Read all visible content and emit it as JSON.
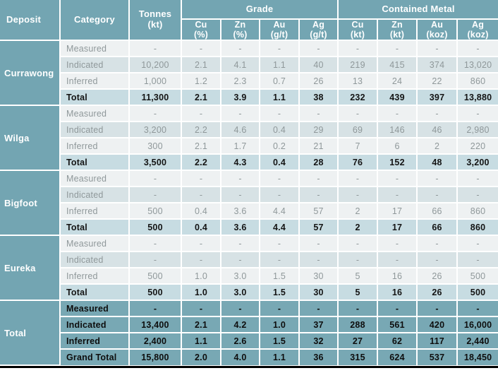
{
  "chart_data": {
    "type": "table",
    "header": {
      "deposit": "Deposit",
      "category": "Category",
      "tonnes": "Tonnes\n(kt)",
      "grade_group": "Grade",
      "metal_group": "Contained Metal",
      "sub_cols": [
        "Cu\n(%)",
        "Zn\n(%)",
        "Au\n(g/t)",
        "Ag\n(g/t)",
        "Cu\n(kt)",
        "Zn\n(kt)",
        "Au\n(koz)",
        "Ag\n(koz)"
      ]
    },
    "sections": [
      {
        "deposit": "Currawong",
        "variant": "normal",
        "rows": [
          {
            "category": "Measured",
            "values": [
              "-",
              "-",
              "-",
              "-",
              "-",
              "-",
              "-",
              "-",
              "-"
            ]
          },
          {
            "category": "Indicated",
            "values": [
              "10,200",
              "2.1",
              "4.1",
              "1.1",
              "40",
              "219",
              "415",
              "374",
              "13,020"
            ]
          },
          {
            "category": "Inferred",
            "values": [
              "1,000",
              "1.2",
              "2.3",
              "0.7",
              "26",
              "13",
              "24",
              "22",
              "860"
            ]
          },
          {
            "category": "Total",
            "values": [
              "11,300",
              "2.1",
              "3.9",
              "1.1",
              "38",
              "232",
              "439",
              "397",
              "13,880"
            ]
          }
        ]
      },
      {
        "deposit": "Wilga",
        "variant": "normal",
        "rows": [
          {
            "category": "Measured",
            "values": [
              "-",
              "-",
              "-",
              "-",
              "-",
              "-",
              "-",
              "-",
              "-"
            ]
          },
          {
            "category": "Indicated",
            "values": [
              "3,200",
              "2.2",
              "4.6",
              "0.4",
              "29",
              "69",
              "146",
              "46",
              "2,980"
            ]
          },
          {
            "category": "Inferred",
            "values": [
              "300",
              "2.1",
              "1.7",
              "0.2",
              "21",
              "7",
              "6",
              "2",
              "220"
            ]
          },
          {
            "category": "Total",
            "values": [
              "3,500",
              "2.2",
              "4.3",
              "0.4",
              "28",
              "76",
              "152",
              "48",
              "3,200"
            ]
          }
        ]
      },
      {
        "deposit": "Bigfoot",
        "variant": "normal",
        "rows": [
          {
            "category": "Measured",
            "values": [
              "-",
              "-",
              "-",
              "-",
              "-",
              "-",
              "-",
              "-",
              "-"
            ]
          },
          {
            "category": "Indicated",
            "values": [
              "-",
              "-",
              "-",
              "-",
              "-",
              "-",
              "-",
              "-",
              "-"
            ]
          },
          {
            "category": "Inferred",
            "values": [
              "500",
              "0.4",
              "3.6",
              "4.4",
              "57",
              "2",
              "17",
              "66",
              "860"
            ]
          },
          {
            "category": "Total",
            "values": [
              "500",
              "0.4",
              "3.6",
              "4.4",
              "57",
              "2",
              "17",
              "66",
              "860"
            ]
          }
        ]
      },
      {
        "deposit": "Eureka",
        "variant": "normal",
        "rows": [
          {
            "category": "Measured",
            "values": [
              "-",
              "-",
              "-",
              "-",
              "-",
              "-",
              "-",
              "-",
              "-"
            ]
          },
          {
            "category": "Indicated",
            "values": [
              "-",
              "-",
              "-",
              "-",
              "-",
              "-",
              "-",
              "-",
              "-"
            ]
          },
          {
            "category": "Inferred",
            "values": [
              "500",
              "1.0",
              "3.0",
              "1.5",
              "30",
              "5",
              "16",
              "26",
              "500"
            ]
          },
          {
            "category": "Total",
            "values": [
              "500",
              "1.0",
              "3.0",
              "1.5",
              "30",
              "5",
              "16",
              "26",
              "500"
            ]
          }
        ]
      },
      {
        "deposit": "Total",
        "variant": "summary",
        "rows": [
          {
            "category": "Measured",
            "values": [
              "-",
              "-",
              "-",
              "-",
              "-",
              "-",
              "-",
              "-",
              "-"
            ]
          },
          {
            "category": "Indicated",
            "values": [
              "13,400",
              "2.1",
              "4.2",
              "1.0",
              "37",
              "288",
              "561",
              "420",
              "16,000"
            ]
          },
          {
            "category": "Inferred",
            "values": [
              "2,400",
              "1.1",
              "2.6",
              "1.5",
              "32",
              "27",
              "62",
              "117",
              "2,440"
            ]
          },
          {
            "category": "Grand Total",
            "values": [
              "15,800",
              "2.0",
              "4.0",
              "1.1",
              "36",
              "315",
              "624",
              "537",
              "18,450"
            ]
          }
        ]
      }
    ],
    "colors": {
      "header_teal": "#73a5b2",
      "summary_teal": "#78a8b4",
      "row_light": "#eef1f2",
      "row_alt": "#d7e2e5",
      "row_subtotal": "#c7dce2",
      "text_muted": "#8f989a",
      "text_dark": "#141414",
      "bottom_rule": "#000000"
    }
  }
}
